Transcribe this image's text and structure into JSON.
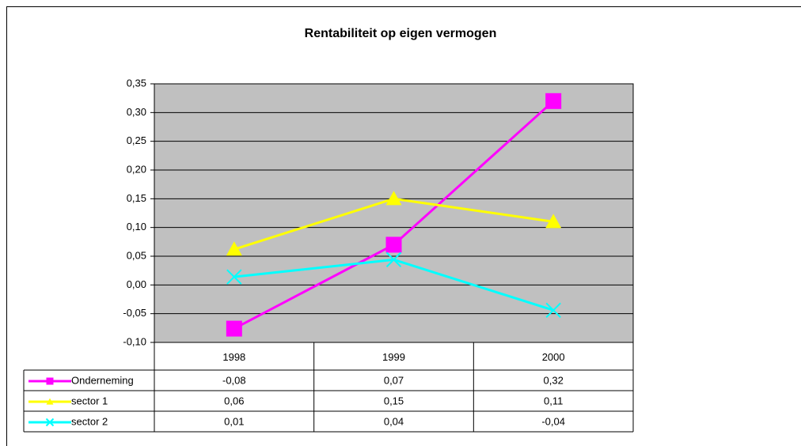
{
  "chart_data": {
    "type": "line",
    "title": "Rentabiliteit op eigen vermogen",
    "categories": [
      "1998",
      "1999",
      "2000"
    ],
    "series": [
      {
        "name": "Onderneming",
        "color": "#ff00ff",
        "marker": "square",
        "values": [
          -0.076,
          0.07,
          0.32
        ],
        "value_labels": [
          "-0,08",
          "0,07",
          "0,32"
        ]
      },
      {
        "name": "sector 1",
        "color": "#ffff00",
        "marker": "triangle",
        "values": [
          0.062,
          0.15,
          0.11
        ],
        "value_labels": [
          "0,06",
          "0,15",
          "0,11"
        ]
      },
      {
        "name": "sector 2",
        "color": "#00ffff",
        "marker": "x",
        "values": [
          0.014,
          0.044,
          -0.044
        ],
        "value_labels": [
          "0,01",
          "0,04",
          "-0,04"
        ]
      }
    ],
    "ylim": [
      -0.1,
      0.35
    ],
    "yticks": [
      {
        "value": -0.1,
        "label": "-0,10"
      },
      {
        "value": -0.05,
        "label": "-0,05"
      },
      {
        "value": 0,
        "label": "0,00"
      },
      {
        "value": 0.05,
        "label": "0,05"
      },
      {
        "value": 0.1,
        "label": "0,10"
      },
      {
        "value": 0.15,
        "label": "0,15"
      },
      {
        "value": 0.2,
        "label": "0,20"
      },
      {
        "value": 0.25,
        "label": "0,25"
      },
      {
        "value": 0.3,
        "label": "0,30"
      },
      {
        "value": 0.35,
        "label": "0,35"
      }
    ],
    "grid": true,
    "plot_background": "#c0c0c0"
  }
}
